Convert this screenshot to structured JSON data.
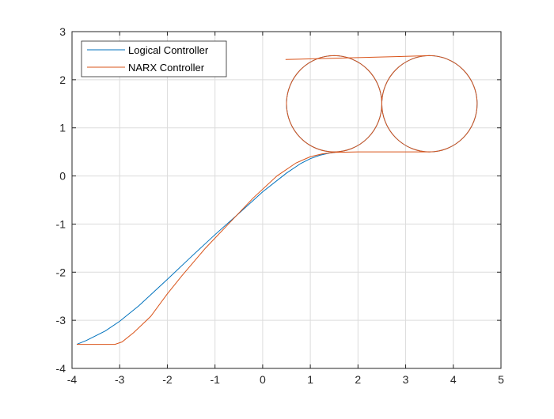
{
  "chart_data": {
    "type": "line",
    "title": "",
    "xlabel": "",
    "ylabel": "",
    "xlim": [
      -4,
      5
    ],
    "ylim": [
      -4,
      3
    ],
    "xticks": [
      -4,
      -3,
      -2,
      -1,
      0,
      1,
      2,
      3,
      4,
      5
    ],
    "yticks": [
      -4,
      -3,
      -2,
      -1,
      0,
      1,
      2,
      3
    ],
    "xtick_labels": [
      "-4",
      "-3",
      "-2",
      "-1",
      "0",
      "1",
      "2",
      "3",
      "4",
      "5"
    ],
    "ytick_labels": [
      "-4",
      "-3",
      "-2",
      "-1",
      "0",
      "1",
      "2",
      "3"
    ],
    "grid": true,
    "legend_placement": "top-left",
    "series": [
      {
        "name": "Logical Controller",
        "color": "#0072BD",
        "x": [
          -3.9,
          -3.7,
          -3.3,
          -3.0,
          -2.6,
          -2.0,
          -1.5,
          -1.0,
          -0.5,
          0.0,
          0.5,
          0.8,
          1.0,
          1.2,
          1.4,
          1.52
        ],
        "y": [
          -3.5,
          -3.42,
          -3.22,
          -3.02,
          -2.7,
          -2.15,
          -1.68,
          -1.22,
          -0.78,
          -0.33,
          0.06,
          0.26,
          0.36,
          0.43,
          0.475,
          0.49
        ]
      },
      {
        "name": "NARX Controller",
        "color": "#D95319",
        "x": [
          -3.9,
          -3.6,
          -3.3,
          -3.1,
          -2.95,
          -2.7,
          -2.35,
          -2.0,
          -1.7,
          -1.2,
          -0.7,
          -0.2,
          0.3,
          0.7,
          1.0,
          1.25,
          1.5,
          2.0,
          2.5,
          3.0,
          3.3,
          3.5
        ],
        "y": [
          -3.5,
          -3.5,
          -3.5,
          -3.5,
          -3.45,
          -3.25,
          -2.92,
          -2.45,
          -2.08,
          -1.5,
          -0.98,
          -0.46,
          0.0,
          0.27,
          0.4,
          0.46,
          0.49,
          0.5,
          0.5,
          0.5,
          0.5,
          0.5
        ]
      }
    ],
    "circles": [
      {
        "series": "NARX Controller",
        "cx": 1.5,
        "cy": 1.5,
        "r": 1.0,
        "color": "#D95319"
      },
      {
        "series": "NARX Controller",
        "cx": 3.5,
        "cy": 1.5,
        "r": 1.0,
        "color": "#D95319"
      },
      {
        "series": "Logical Controller",
        "cx": 1.5,
        "cy": 1.5,
        "r": 1.0,
        "color": "#0072BD"
      },
      {
        "series": "Logical Controller",
        "cx": 3.5,
        "cy": 1.5,
        "r": 1.0,
        "color": "#0072BD"
      }
    ],
    "tangent_line": {
      "series": "NARX Controller",
      "x": [
        0.48,
        3.5
      ],
      "y": [
        2.42,
        2.5
      ],
      "color": "#D95319"
    },
    "arc_to_tail": {
      "series": "NARX Controller",
      "from_x": 3.5,
      "to_x": 4.5,
      "color": "#D95319"
    }
  }
}
